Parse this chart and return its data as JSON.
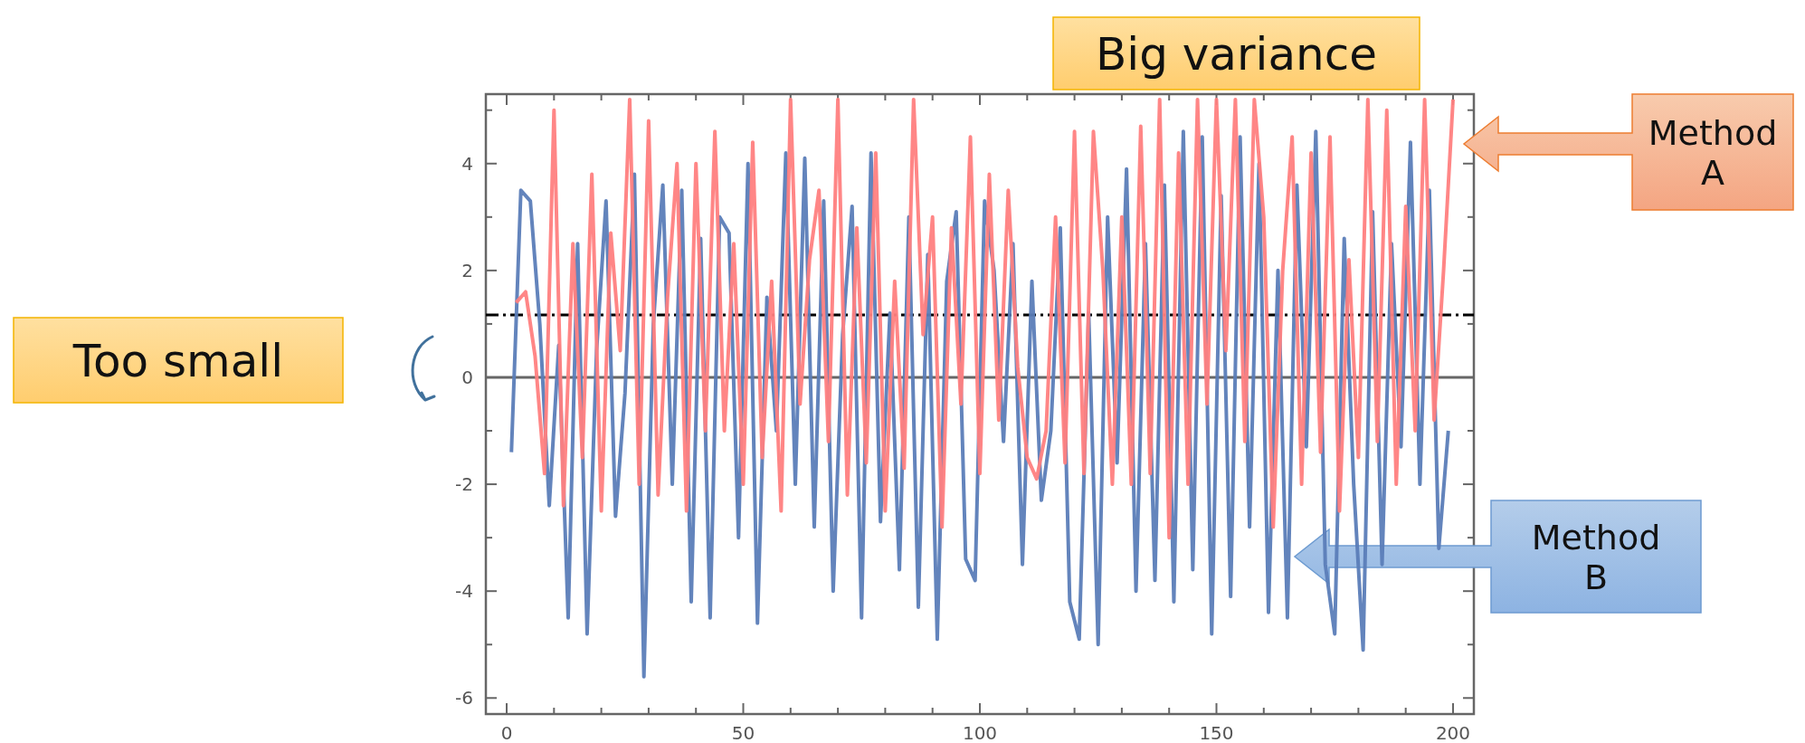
{
  "chart_data": {
    "type": "line",
    "annotations": [
      "Big variance",
      "Too small"
    ],
    "xlim": [
      -4.4,
      204.4
    ],
    "ylim": [
      -6.3,
      5.3
    ],
    "xticks": [
      0,
      {
        "value": 10,
        "label": null
      },
      {
        "value": 20,
        "label": null
      },
      {
        "value": 30,
        "label": null
      },
      {
        "value": 40,
        "label": null
      },
      50,
      {
        "value": 60,
        "label": null
      },
      {
        "value": 70,
        "label": null
      },
      {
        "value": 80,
        "label": null
      },
      {
        "value": 90,
        "label": null
      },
      100,
      {
        "value": 110,
        "label": null
      },
      {
        "value": 120,
        "label": null
      },
      {
        "value": 130,
        "label": null
      },
      {
        "value": 140,
        "label": null
      },
      150,
      {
        "value": 160,
        "label": null
      },
      {
        "value": 170,
        "label": null
      },
      {
        "value": 180,
        "label": null
      },
      {
        "value": 190,
        "label": null
      },
      200
    ],
    "yticks": [
      -6,
      {
        "value": -5,
        "label": null
      },
      -4,
      {
        "value": -3,
        "label": null
      },
      -2,
      {
        "value": -1,
        "label": null
      },
      0,
      {
        "value": 1,
        "label": null
      },
      2,
      {
        "value": 3,
        "label": null
      },
      4,
      {
        "value": 5,
        "label": null
      }
    ],
    "ref_lines": [
      {
        "axis": "y",
        "value": 1.17,
        "color": "#000000",
        "line_style": "dashed"
      },
      {
        "axis": "y",
        "value": 0,
        "color": "#666666"
      }
    ],
    "series": [
      {
        "name": "Method B",
        "color": "#5b7db8",
        "x": [
          1,
          3,
          5,
          7,
          9,
          11,
          13,
          15,
          17,
          19,
          21,
          23,
          25,
          27,
          29,
          31,
          33,
          35,
          37,
          39,
          41,
          43,
          45,
          47,
          49,
          51,
          53,
          55,
          57,
          59,
          61,
          63,
          65,
          67,
          69,
          71,
          73,
          75,
          77,
          79,
          81,
          83,
          85,
          87,
          89,
          91,
          93,
          95,
          97,
          99,
          101,
          103,
          105,
          107,
          109,
          111,
          113,
          115,
          117,
          119,
          121,
          123,
          125,
          127,
          129,
          131,
          133,
          135,
          137,
          139,
          141,
          143,
          145,
          147,
          149,
          151,
          153,
          155,
          157,
          159,
          161,
          163,
          165,
          167,
          169,
          171,
          173,
          175,
          177,
          179,
          181,
          183,
          185,
          187,
          189,
          191,
          193,
          195,
          197,
          199
        ],
        "values": [
          -1.4,
          3.5,
          3.3,
          1.0,
          -2.4,
          0.6,
          -4.5,
          2.5,
          -4.8,
          0.5,
          3.3,
          -2.6,
          -0.3,
          3.8,
          -5.6,
          1.0,
          3.6,
          -2.0,
          3.5,
          -4.2,
          2.6,
          -4.5,
          3.0,
          2.7,
          -3.0,
          4.0,
          -4.6,
          1.5,
          -1.0,
          4.2,
          -2.0,
          4.1,
          -2.8,
          3.3,
          -4.0,
          0.8,
          3.2,
          -4.5,
          4.2,
          -2.7,
          1.2,
          -3.6,
          3.0,
          -4.3,
          2.3,
          -4.9,
          1.8,
          3.1,
          -3.4,
          -3.8,
          3.3,
          2.0,
          -1.2,
          2.5,
          -3.5,
          1.8,
          -2.3,
          -1.0,
          2.8,
          -4.2,
          -4.9,
          1.2,
          -5.0,
          3.0,
          -1.6,
          3.9,
          -4.0,
          2.5,
          -3.8,
          3.6,
          -4.2,
          4.6,
          -3.6,
          4.5,
          -4.8,
          3.4,
          -4.1,
          4.5,
          -2.8,
          4.0,
          -4.4,
          2.0,
          -4.5,
          3.6,
          -1.3,
          4.6,
          -3.5,
          -4.8,
          2.6,
          -2.0,
          -5.1,
          3.1,
          -3.5,
          2.5,
          -1.3,
          4.4,
          -2.0,
          3.5,
          -3.2,
          -1.0
        ]
      },
      {
        "name": "Method A",
        "color": "#ff8080",
        "x": [
          2,
          4,
          6,
          8,
          10,
          12,
          14,
          16,
          18,
          20,
          22,
          24,
          26,
          28,
          30,
          32,
          34,
          36,
          38,
          40,
          42,
          44,
          46,
          48,
          50,
          52,
          54,
          56,
          58,
          60,
          62,
          64,
          66,
          68,
          70,
          72,
          74,
          76,
          78,
          80,
          82,
          84,
          86,
          88,
          90,
          92,
          94,
          96,
          98,
          100,
          102,
          104,
          106,
          108,
          110,
          112,
          114,
          116,
          118,
          120,
          122,
          124,
          126,
          128,
          130,
          132,
          134,
          136,
          138,
          140,
          142,
          144,
          146,
          148,
          150,
          152,
          154,
          156,
          158,
          160,
          162,
          164,
          166,
          168,
          170,
          172,
          174,
          176,
          178,
          180,
          182,
          184,
          186,
          188,
          190,
          192,
          194,
          196,
          198,
          200
        ],
        "values": [
          1.4,
          1.6,
          0.4,
          -1.8,
          5.0,
          -2.4,
          2.5,
          -1.5,
          3.8,
          -2.5,
          2.7,
          0.5,
          5.2,
          -2.0,
          4.8,
          -2.2,
          1.5,
          4.0,
          -2.5,
          4.0,
          -1.0,
          4.6,
          -1.0,
          2.5,
          -2.0,
          4.4,
          -1.5,
          1.8,
          -2.5,
          5.2,
          -0.5,
          2.2,
          3.5,
          -1.2,
          5.2,
          -2.2,
          2.8,
          -1.6,
          4.2,
          -2.5,
          1.8,
          -1.7,
          5.2,
          0.8,
          3.0,
          -2.8,
          2.8,
          -0.5,
          4.5,
          -1.8,
          3.8,
          -0.8,
          3.5,
          0.2,
          -1.5,
          -1.9,
          -1.0,
          3.0,
          -1.6,
          4.6,
          -1.8,
          4.6,
          2.0,
          -2.0,
          3.0,
          -2.0,
          4.7,
          -1.8,
          5.2,
          -3.0,
          4.2,
          -2.0,
          5.2,
          -0.5,
          5.2,
          0.5,
          5.2,
          -1.2,
          5.2,
          3.0,
          -2.8,
          2.0,
          4.5,
          -2.0,
          4.2,
          -1.4,
          4.5,
          -2.5,
          2.2,
          -1.5,
          5.2,
          -1.2,
          5.0,
          -2.0,
          3.2,
          -1.0,
          5.2,
          -0.8,
          2.0,
          5.2
        ]
      }
    ]
  }
}
